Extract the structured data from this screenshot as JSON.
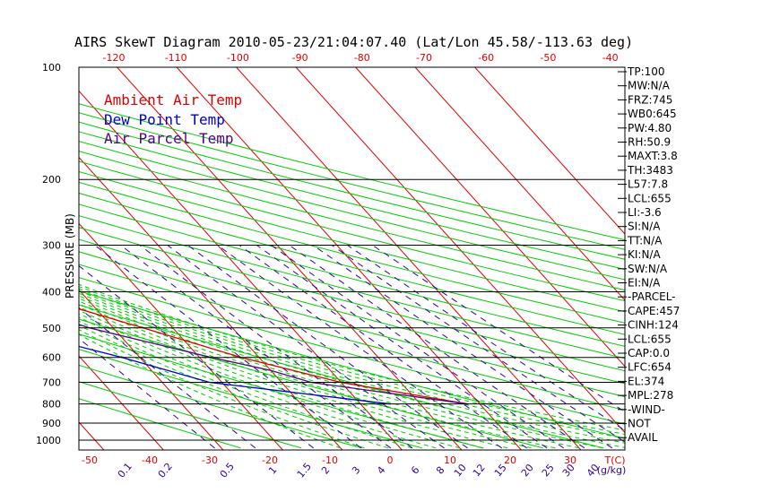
{
  "chart_data": {
    "type": "line",
    "title": "AIRS SkewT Diagram 2010-05-23/21:04:07.40 (Lat/Lon 45.58/-113.63 deg)",
    "ylabel": "PRESSURE (MB)",
    "xlabel_right": "T(C)",
    "mixing_unit": "(g/kg)",
    "pressure_ticks": [
      "100",
      "200",
      "300",
      "400",
      "500",
      "600",
      "700",
      "800",
      "900",
      "1000"
    ],
    "top_temp_ticks": [
      "-120",
      "-110",
      "-100",
      "-90",
      "-80",
      "-70",
      "-60",
      "-50",
      "-40"
    ],
    "bottom_temp_ticks": [
      "-50",
      "-40",
      "-30",
      "-20",
      "-10",
      "0",
      "10",
      "20",
      "30"
    ],
    "mixing_ratio_ticks": [
      "0.1",
      "0.2",
      "0.5",
      "1",
      "1.5",
      "2",
      "3",
      "4",
      "6",
      "8",
      "10",
      "12",
      "15",
      "20",
      "25",
      "30",
      "40"
    ],
    "legend": [
      {
        "label": "Ambient Air Temp",
        "color": "#dd0000"
      },
      {
        "label": "Dew Point Temp",
        "color": "#0000cc"
      },
      {
        "label": "Air Parcel Temp",
        "color": "#550088"
      }
    ],
    "series": [
      {
        "name": "Ambient Air Temp",
        "color": "#dd0000",
        "points": [
          [
            100,
            -45
          ],
          [
            150,
            -53
          ],
          [
            200,
            -57
          ],
          [
            250,
            -64
          ],
          [
            300,
            -73
          ],
          [
            350,
            -63
          ],
          [
            400,
            -50
          ],
          [
            500,
            -35
          ],
          [
            600,
            -23
          ],
          [
            700,
            -10
          ],
          [
            800,
            8
          ]
        ]
      },
      {
        "name": "Dew Point Temp",
        "color": "#0000cc",
        "points": [
          [
            100,
            -84
          ],
          [
            150,
            -100
          ],
          [
            200,
            -100
          ],
          [
            250,
            -97
          ],
          [
            300,
            -90
          ],
          [
            400,
            -71
          ],
          [
            500,
            -58
          ],
          [
            600,
            -43
          ],
          [
            700,
            -32
          ],
          [
            800,
            -5
          ]
        ]
      },
      {
        "name": "Air Parcel Temp",
        "color": "#550088",
        "points": [
          [
            100,
            -104
          ],
          [
            200,
            -97
          ],
          [
            300,
            -84
          ],
          [
            400,
            -57
          ],
          [
            500,
            -44
          ],
          [
            600,
            -28
          ],
          [
            650,
            -20
          ],
          [
            700,
            -15
          ],
          [
            800,
            8
          ]
        ]
      }
    ],
    "indices": [
      "TP:100",
      "MW:N/A",
      "FRZ:745",
      "WB0:645",
      "PW:4.80",
      "RH:50.9",
      "MAXT:3.8",
      "TH:3483",
      "L57:7.8",
      "LCL:655",
      "LI:-3.6",
      "SI:N/A",
      "TT:N/A",
      "KI:N/A",
      "SW:N/A",
      "EI:N/A",
      "-PARCEL-",
      "CAPE:457",
      "CINH:124",
      "LCL:655",
      "CAP:0.0",
      "LFC:654",
      "EL:374",
      "MPL:278",
      "-WIND-",
      "NOT",
      "AVAIL"
    ],
    "colors": {
      "isotherm": "#dd0000",
      "dry_adiabat": "#00cc00",
      "moist_adiabat": "#00cc00",
      "mixing_ratio": "#330099",
      "cape_hatch": "#550088"
    }
  }
}
